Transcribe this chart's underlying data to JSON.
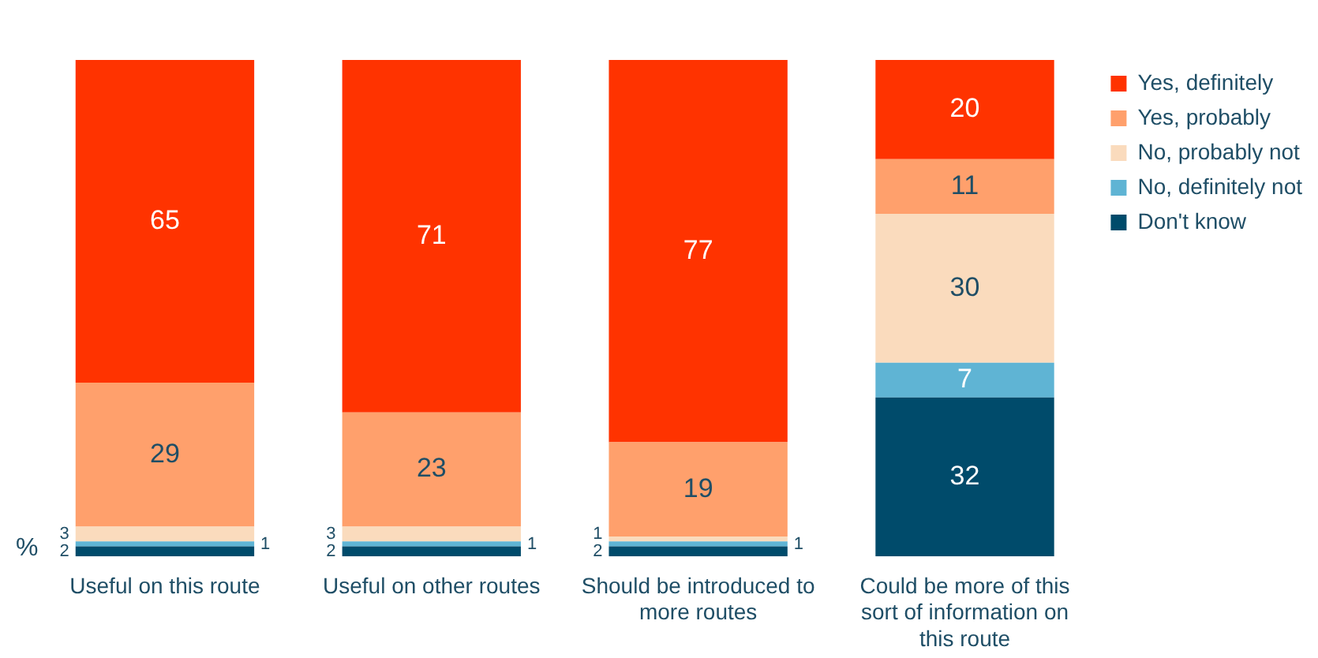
{
  "chart_data": {
    "type": "bar",
    "stacked": true,
    "data_labels": true,
    "legend": "top right",
    "annotations": [
      "%"
    ],
    "categories": [
      "Useful on this route",
      "Useful on other routes",
      "Should be introduced to more routes",
      "Could be more of this sort of information on this route"
    ],
    "series": [
      {
        "name": "Don't know",
        "color": "#004b6b",
        "values": [
          2,
          2,
          2,
          32
        ]
      },
      {
        "name": "No, definitely not",
        "color": "#5fb4d4",
        "values": [
          1,
          1,
          1,
          7
        ]
      },
      {
        "name": "No, probably not",
        "color": "#fadbbd",
        "values": [
          3,
          3,
          1,
          30
        ]
      },
      {
        "name": "Yes, probably",
        "color": "#ffa06c",
        "values": [
          29,
          23,
          19,
          11
        ]
      },
      {
        "name": "Yes, definitely",
        "color": "#ff3300",
        "values": [
          65,
          71,
          77,
          20
        ]
      }
    ]
  }
}
